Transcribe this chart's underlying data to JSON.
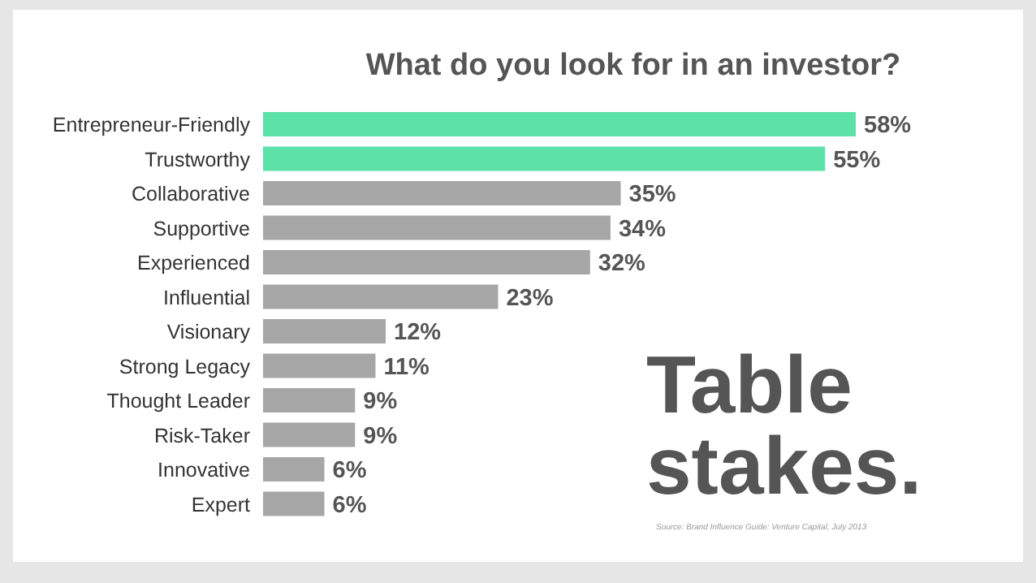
{
  "chart_data": {
    "type": "bar",
    "orientation": "horizontal",
    "title": "What do you look for in an investor?",
    "categories": [
      "Entrepreneur-Friendly",
      "Trustworthy",
      "Collaborative",
      "Supportive",
      "Experienced",
      "Influential",
      "Visionary",
      "Strong Legacy",
      "Thought Leader",
      "Risk-Taker",
      "Innovative",
      "Expert"
    ],
    "values": [
      58,
      55,
      35,
      34,
      32,
      23,
      12,
      11,
      9,
      9,
      6,
      6
    ],
    "colors": [
      "#5ce1a9",
      "#5ce1a9",
      "#a6a6a6",
      "#a6a6a6",
      "#a6a6a6",
      "#a6a6a6",
      "#a6a6a6",
      "#a6a6a6",
      "#a6a6a6",
      "#a6a6a6",
      "#a6a6a6",
      "#a6a6a6"
    ],
    "value_labels": [
      "58%",
      "55%",
      "35%",
      "34%",
      "32%",
      "23%",
      "12%",
      "11%",
      "9%",
      "9%",
      "6%",
      "6%"
    ],
    "tick_labels": "y",
    "annotations": [
      "Table stakes.",
      "Source: Brand Influence Guide: Venture Capital, July 2013"
    ]
  }
}
